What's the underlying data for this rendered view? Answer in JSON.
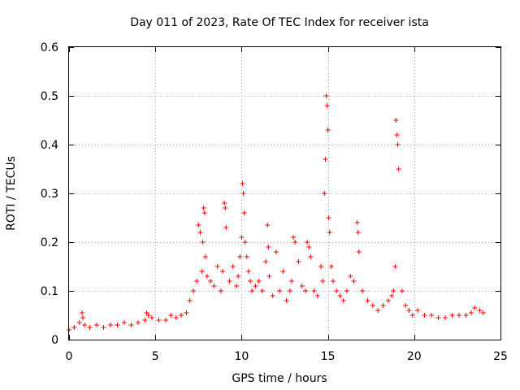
{
  "chart_data": {
    "type": "scatter",
    "title": "Day 011 of 2023, Rate Of TEC Index for receiver ista",
    "xlabel": "GPS time / hours",
    "ylabel": "ROTI / TECUs",
    "xlim": [
      0,
      25
    ],
    "ylim": [
      0,
      0.6
    ],
    "xticks": [
      0,
      5,
      10,
      15,
      20,
      25
    ],
    "yticks": [
      0,
      0.1,
      0.2,
      0.3,
      0.4,
      0.5,
      0.6
    ],
    "xtick_labels": [
      "0",
      "5",
      "10",
      "15",
      "20",
      "25"
    ],
    "ytick_labels": [
      "0",
      "0.1",
      "0.2",
      "0.3",
      "0.4",
      "0.5",
      "0.6"
    ],
    "grid": true,
    "legend": "none",
    "marker": "+",
    "color": "#ff0000",
    "series": [
      {
        "name": "ROTI",
        "x": [
          0.0,
          0.3,
          0.6,
          0.75,
          0.8,
          0.9,
          1.2,
          1.6,
          2.0,
          2.4,
          2.8,
          3.2,
          3.6,
          4.0,
          4.4,
          4.5,
          4.6,
          4.8,
          5.2,
          5.6,
          5.9,
          6.2,
          6.5,
          6.8,
          7.0,
          7.2,
          7.4,
          7.5,
          7.6,
          7.7,
          7.75,
          7.8,
          7.85,
          7.9,
          8.0,
          8.2,
          8.4,
          8.6,
          8.8,
          8.9,
          9.0,
          9.05,
          9.1,
          9.3,
          9.5,
          9.7,
          9.8,
          9.9,
          10.0,
          10.05,
          10.1,
          10.15,
          10.2,
          10.3,
          10.4,
          10.5,
          10.6,
          10.8,
          11.0,
          11.2,
          11.4,
          11.5,
          11.55,
          11.6,
          11.8,
          12.0,
          12.2,
          12.4,
          12.6,
          12.8,
          12.9,
          13.0,
          13.1,
          13.3,
          13.5,
          13.7,
          13.8,
          13.9,
          14.0,
          14.2,
          14.4,
          14.6,
          14.7,
          14.8,
          14.85,
          14.9,
          14.95,
          15.0,
          15.05,
          15.1,
          15.2,
          15.3,
          15.5,
          15.7,
          15.9,
          16.1,
          16.3,
          16.5,
          16.7,
          16.75,
          16.8,
          17.0,
          17.3,
          17.6,
          17.9,
          18.2,
          18.5,
          18.7,
          18.8,
          18.9,
          18.95,
          19.0,
          19.05,
          19.1,
          19.3,
          19.5,
          19.7,
          19.9,
          20.2,
          20.6,
          21.0,
          21.4,
          21.8,
          22.2,
          22.6,
          23.0,
          23.3,
          23.5,
          23.8,
          24.0
        ],
        "y": [
          0.02,
          0.025,
          0.035,
          0.055,
          0.045,
          0.03,
          0.025,
          0.03,
          0.025,
          0.03,
          0.03,
          0.035,
          0.03,
          0.035,
          0.04,
          0.055,
          0.05,
          0.045,
          0.04,
          0.04,
          0.05,
          0.045,
          0.05,
          0.055,
          0.08,
          0.1,
          0.12,
          0.235,
          0.22,
          0.14,
          0.2,
          0.27,
          0.26,
          0.17,
          0.13,
          0.12,
          0.11,
          0.15,
          0.1,
          0.14,
          0.28,
          0.27,
          0.23,
          0.12,
          0.15,
          0.11,
          0.13,
          0.17,
          0.21,
          0.32,
          0.3,
          0.26,
          0.2,
          0.17,
          0.14,
          0.12,
          0.1,
          0.11,
          0.12,
          0.1,
          0.16,
          0.235,
          0.19,
          0.13,
          0.09,
          0.18,
          0.1,
          0.14,
          0.08,
          0.1,
          0.12,
          0.21,
          0.2,
          0.16,
          0.11,
          0.1,
          0.2,
          0.19,
          0.17,
          0.1,
          0.09,
          0.15,
          0.12,
          0.3,
          0.37,
          0.5,
          0.48,
          0.43,
          0.25,
          0.22,
          0.15,
          0.12,
          0.1,
          0.09,
          0.08,
          0.1,
          0.13,
          0.12,
          0.24,
          0.22,
          0.18,
          0.1,
          0.08,
          0.07,
          0.06,
          0.07,
          0.08,
          0.09,
          0.1,
          0.15,
          0.45,
          0.42,
          0.4,
          0.35,
          0.1,
          0.07,
          0.06,
          0.05,
          0.06,
          0.05,
          0.05,
          0.045,
          0.045,
          0.05,
          0.05,
          0.05,
          0.055,
          0.065,
          0.06,
          0.055
        ]
      }
    ]
  }
}
